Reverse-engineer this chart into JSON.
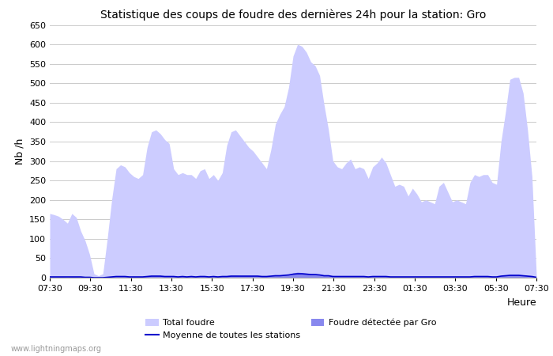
{
  "title": "Statistique des coups de foudre des dernières 24h pour la station: Gro",
  "xlabel": "Heure",
  "ylabel": "Nb /h",
  "watermark": "www.lightningmaps.org",
  "ylim": [
    0,
    650
  ],
  "yticks": [
    0,
    50,
    100,
    150,
    200,
    250,
    300,
    350,
    400,
    450,
    500,
    550,
    600,
    650
  ],
  "xtick_labels": [
    "07:30",
    "09:30",
    "11:30",
    "13:30",
    "15:30",
    "17:30",
    "19:30",
    "21:30",
    "23:30",
    "01:30",
    "03:30",
    "05:30",
    "07:30"
  ],
  "legend_total_foudre_color": "#ccccff",
  "legend_foudre_gro_color": "#8888ee",
  "legend_moyenne_color": "#0000cc",
  "background_color": "#ffffff",
  "grid_color": "#cccccc",
  "total_foudre": [
    165,
    162,
    158,
    150,
    140,
    165,
    155,
    120,
    95,
    60,
    10,
    5,
    10,
    100,
    200,
    280,
    290,
    285,
    270,
    260,
    255,
    265,
    335,
    375,
    380,
    370,
    355,
    345,
    280,
    265,
    270,
    265,
    265,
    255,
    275,
    280,
    255,
    265,
    250,
    270,
    340,
    375,
    380,
    365,
    350,
    335,
    325,
    310,
    295,
    280,
    330,
    395,
    420,
    440,
    490,
    570,
    600,
    595,
    580,
    555,
    545,
    520,
    445,
    380,
    300,
    285,
    280,
    295,
    305,
    280,
    285,
    280,
    255,
    285,
    295,
    310,
    295,
    265,
    235,
    240,
    235,
    210,
    230,
    215,
    195,
    200,
    195,
    190,
    235,
    245,
    220,
    195,
    200,
    195,
    190,
    245,
    265,
    260,
    265,
    265,
    245,
    240,
    350,
    425,
    510,
    515,
    515,
    475,
    380,
    260,
    5
  ],
  "foudre_gro": [
    3,
    3,
    3,
    3,
    2,
    3,
    3,
    2,
    2,
    1,
    0,
    0,
    0,
    1,
    3,
    4,
    4,
    4,
    3,
    3,
    3,
    3,
    5,
    6,
    6,
    5,
    5,
    5,
    4,
    3,
    4,
    3,
    4,
    3,
    4,
    4,
    3,
    4,
    3,
    4,
    5,
    6,
    6,
    5,
    5,
    5,
    5,
    5,
    4,
    4,
    5,
    6,
    6,
    7,
    8,
    12,
    14,
    13,
    12,
    11,
    10,
    9,
    7,
    6,
    4,
    4,
    4,
    4,
    4,
    4,
    4,
    4,
    3,
    4,
    4,
    5,
    4,
    3,
    3,
    3,
    3,
    3,
    3,
    3,
    3,
    3,
    3,
    3,
    3,
    3,
    3,
    3,
    3,
    3,
    3,
    3,
    4,
    4,
    4,
    4,
    3,
    3,
    5,
    6,
    8,
    8,
    8,
    7,
    5,
    4,
    1
  ],
  "moyenne": [
    2,
    2,
    2,
    2,
    2,
    2,
    2,
    2,
    1,
    1,
    0,
    0,
    0,
    1,
    2,
    3,
    3,
    3,
    2,
    2,
    2,
    2,
    3,
    4,
    4,
    4,
    3,
    3,
    3,
    2,
    3,
    2,
    3,
    2,
    3,
    3,
    2,
    3,
    2,
    3,
    3,
    4,
    4,
    4,
    4,
    4,
    4,
    4,
    3,
    3,
    4,
    5,
    5,
    6,
    7,
    9,
    10,
    10,
    9,
    8,
    8,
    7,
    5,
    5,
    3,
    3,
    3,
    3,
    3,
    3,
    3,
    3,
    2,
    3,
    3,
    3,
    3,
    2,
    2,
    2,
    2,
    2,
    2,
    2,
    2,
    2,
    2,
    2,
    2,
    2,
    2,
    2,
    2,
    2,
    2,
    2,
    3,
    3,
    3,
    3,
    2,
    2,
    4,
    5,
    6,
    6,
    6,
    5,
    4,
    3,
    1
  ]
}
